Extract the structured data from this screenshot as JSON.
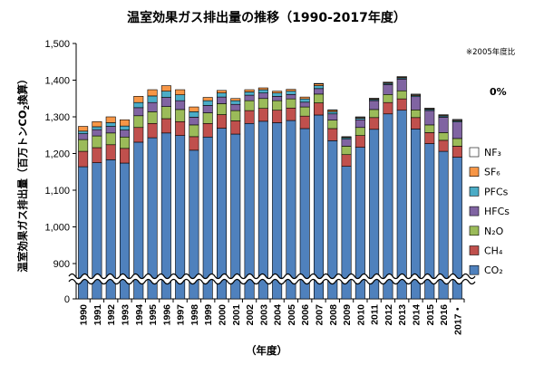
{
  "chart_data": {
    "type": "bar",
    "stacked": true,
    "title": "温室効果ガス排出量の推移（1990-2017年度）",
    "ylabel_main": "温室効果ガス排出量（百万トンCO",
    "ylabel_sub": "2",
    "ylabel_tail": "換算）",
    "xlabel": "（年度）",
    "note": "※2005年度比",
    "change_text": "0%",
    "ylim": [
      900,
      1500
    ],
    "yticks": [
      "1,500",
      "1,400",
      "1,300",
      "1,200",
      "1,100",
      "1,000",
      "900"
    ],
    "zero_label": "0",
    "axis_break": true,
    "grid": false,
    "legend_position": "right",
    "categories": [
      "1990",
      "1991",
      "1992",
      "1993",
      "1994",
      "1995",
      "1996",
      "1997",
      "1998",
      "1999",
      "2000",
      "2001",
      "2002",
      "2003",
      "2004",
      "2005",
      "2006",
      "2007",
      "2008",
      "2009",
      "2010",
      "2011",
      "2012",
      "2013",
      "2014",
      "2015",
      "2016",
      "2017"
    ],
    "category_labels": [
      "1990",
      "1991",
      "1992",
      "1993",
      "1994",
      "1995",
      "1996",
      "1997",
      "1998",
      "1999",
      "2000",
      "2001",
      "2002",
      "2003",
      "2004",
      "2005",
      "2006",
      "2007",
      "2008",
      "2009",
      "2010",
      "2011",
      "2012",
      "2013",
      "2014",
      "2015",
      "2016",
      "2017・"
    ],
    "series": [
      {
        "name": "CO₂",
        "color": "#4f81bd",
        "values": [
          1164,
          1175,
          1183,
          1174,
          1231,
          1243,
          1256,
          1249,
          1209,
          1245,
          1269,
          1253,
          1282,
          1288,
          1284,
          1290,
          1268,
          1305,
          1235,
          1165,
          1217,
          1266,
          1308,
          1318,
          1267,
          1227,
          1206,
          1190
        ]
      },
      {
        "name": "CH₄",
        "color": "#c0504d",
        "values": [
          42,
          41,
          41,
          40,
          40,
          39,
          39,
          38,
          37,
          37,
          37,
          36,
          35,
          35,
          34,
          34,
          34,
          33,
          33,
          32,
          32,
          32,
          31,
          31,
          31,
          30,
          30,
          30
        ]
      },
      {
        "name": "N₂O",
        "color": "#9bbb59",
        "values": [
          32,
          32,
          32,
          31,
          32,
          32,
          33,
          33,
          32,
          29,
          30,
          28,
          27,
          27,
          26,
          25,
          25,
          24,
          23,
          23,
          22,
          22,
          22,
          22,
          21,
          21,
          21,
          21
        ]
      },
      {
        "name": "HFCs",
        "color": "#8064a2",
        "values": [
          16,
          17,
          18,
          19,
          22,
          25,
          25,
          24,
          21,
          20,
          18,
          17,
          15,
          15,
          12,
          12,
          13,
          15,
          17,
          19,
          21,
          24,
          27,
          32,
          36,
          39,
          42,
          45
        ]
      },
      {
        "name": "PFCs",
        "color": "#4bacc6",
        "values": [
          7,
          8,
          10,
          11,
          14,
          18,
          17,
          16,
          15,
          13,
          11,
          10,
          9,
          9,
          9,
          9,
          9,
          8,
          6,
          4,
          4,
          3,
          3,
          3,
          3,
          3,
          3,
          3
        ]
      },
      {
        "name": "SF₆",
        "color": "#f79646",
        "values": [
          13,
          14,
          16,
          17,
          17,
          17,
          15,
          14,
          13,
          9,
          7,
          6,
          6,
          5,
          5,
          5,
          5,
          5,
          4,
          2,
          2,
          2,
          2,
          2,
          2,
          2,
          2,
          2
        ]
      },
      {
        "name": "NF₃",
        "color": "#ffffff",
        "values": [
          0,
          0,
          0,
          0,
          0,
          0,
          0,
          0,
          0,
          0,
          0,
          0,
          0,
          0,
          0,
          0,
          0,
          1,
          1,
          1,
          2,
          2,
          2,
          2,
          2,
          2,
          2,
          2
        ]
      }
    ],
    "legend_order": [
      "NF₃",
      "SF₆",
      "PFCs",
      "HFCs",
      "N₂O",
      "CH₄",
      "CO₂"
    ]
  }
}
